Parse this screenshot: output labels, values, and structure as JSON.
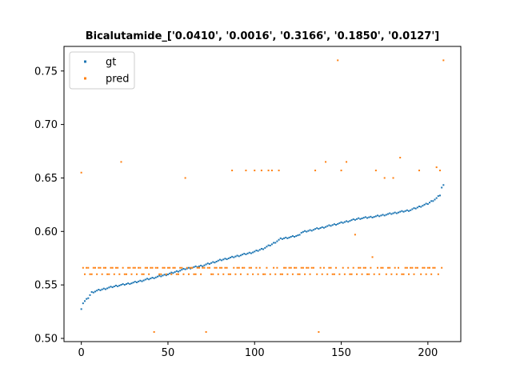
{
  "chart_data": {
    "type": "scatter",
    "title": "Bicalutamide_['0.0410', '0.0016', '0.3166', '0.1850', '0.0127']",
    "xlabel": "",
    "ylabel": "",
    "xlim": [
      -10,
      219
    ],
    "ylim": [
      0.497,
      0.773
    ],
    "xticks": [
      0,
      50,
      100,
      150,
      200
    ],
    "yticks": [
      0.5,
      0.55,
      0.6,
      0.65,
      0.7,
      0.75
    ],
    "ytick_labels": [
      "0.50",
      "0.55",
      "0.60",
      "0.65",
      "0.70",
      "0.75"
    ],
    "xtick_labels": [
      "0",
      "50",
      "100",
      "150",
      "200"
    ],
    "grid": false,
    "legend": "upper-left",
    "colors": {
      "gt": "#1f77b4",
      "pred": "#ff7f0e"
    },
    "series": [
      {
        "name": "gt",
        "x": [],
        "y": []
      },
      {
        "name": "pred",
        "x": [],
        "y": []
      }
    ],
    "gt_keypoints": [
      [
        0,
        0.528
      ],
      [
        1,
        0.533
      ],
      [
        4,
        0.538
      ],
      [
        6,
        0.543
      ],
      [
        10,
        0.545
      ],
      [
        15,
        0.547
      ],
      [
        20,
        0.549
      ],
      [
        30,
        0.552
      ],
      [
        40,
        0.556
      ],
      [
        50,
        0.56
      ],
      [
        60,
        0.565
      ],
      [
        70,
        0.568
      ],
      [
        80,
        0.573
      ],
      [
        90,
        0.577
      ],
      [
        100,
        0.581
      ],
      [
        105,
        0.584
      ],
      [
        110,
        0.588
      ],
      [
        115,
        0.593
      ],
      [
        125,
        0.596
      ],
      [
        127,
        0.599
      ],
      [
        140,
        0.604
      ],
      [
        150,
        0.608
      ],
      [
        160,
        0.612
      ],
      [
        170,
        0.614
      ],
      [
        180,
        0.617
      ],
      [
        190,
        0.62
      ],
      [
        200,
        0.626
      ],
      [
        205,
        0.631
      ],
      [
        207,
        0.634
      ],
      [
        208,
        0.641
      ],
      [
        209,
        0.643
      ]
    ],
    "pred_low_values": [
      0.56,
      0.566
    ],
    "pred_high_values": [
      0.657,
      0.665
    ],
    "pred_outliers": [
      [
        0,
        0.655
      ],
      [
        23,
        0.665
      ],
      [
        42,
        0.506
      ],
      [
        60,
        0.65
      ],
      [
        72,
        0.506
      ],
      [
        87,
        0.657
      ],
      [
        95,
        0.657
      ],
      [
        100,
        0.657
      ],
      [
        104,
        0.657
      ],
      [
        108,
        0.657
      ],
      [
        110,
        0.657
      ],
      [
        114,
        0.657
      ],
      [
        135,
        0.657
      ],
      [
        137,
        0.506
      ],
      [
        141,
        0.665
      ],
      [
        148,
        0.76
      ],
      [
        150,
        0.657
      ],
      [
        153,
        0.665
      ],
      [
        158,
        0.597
      ],
      [
        168,
        0.576
      ],
      [
        170,
        0.657
      ],
      [
        175,
        0.65
      ],
      [
        180,
        0.65
      ],
      [
        184,
        0.669
      ],
      [
        195,
        0.657
      ],
      [
        205,
        0.66
      ],
      [
        207,
        0.657
      ],
      [
        209,
        0.76
      ]
    ]
  }
}
